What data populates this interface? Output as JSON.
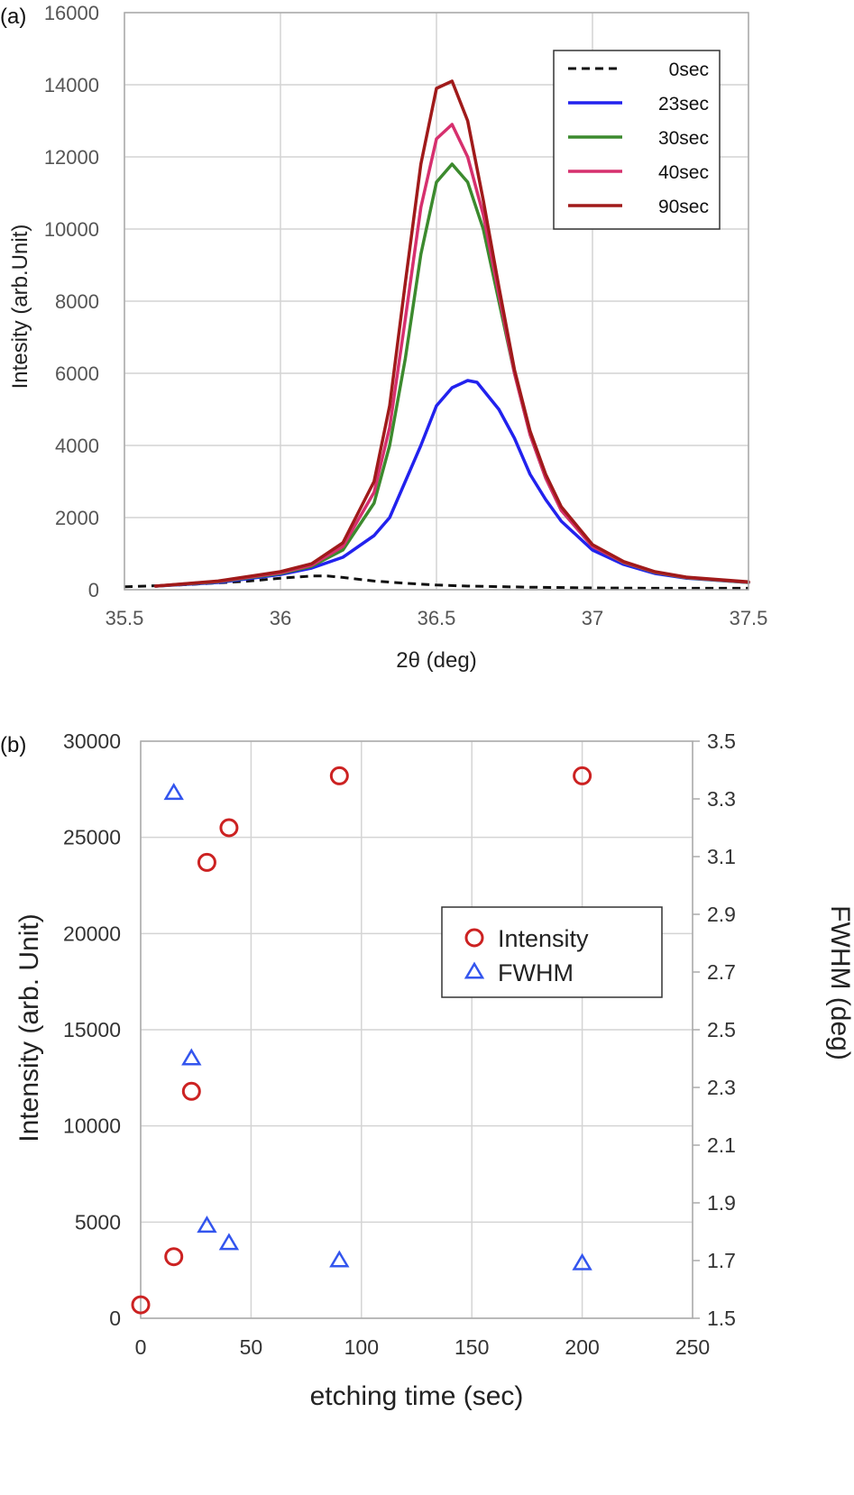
{
  "chart_data": [
    {
      "panel_label": "(a)",
      "type": "line",
      "xlabel": "2θ (deg)",
      "ylabel": "Intesity (arb.Unit)",
      "xlim": [
        35.5,
        37.5
      ],
      "ylim": [
        0,
        16000
      ],
      "x_ticks": [
        35.5,
        36,
        36.5,
        37,
        37.5
      ],
      "y_ticks": [
        0,
        2000,
        4000,
        6000,
        8000,
        10000,
        12000,
        14000,
        16000
      ],
      "grid": true,
      "legend_position": "top-right",
      "series": [
        {
          "name": "0sec",
          "color": "#111111",
          "dash": "dashed",
          "x": [
            35.5,
            35.7,
            35.9,
            36.0,
            36.1,
            36.15,
            36.2,
            36.3,
            36.4,
            36.5,
            36.6,
            36.8,
            37.0,
            37.2,
            37.5
          ],
          "y": [
            80,
            140,
            240,
            320,
            380,
            380,
            340,
            240,
            180,
            130,
            100,
            70,
            50,
            40,
            40
          ]
        },
        {
          "name": "23sec",
          "color": "#2222ee",
          "dash": "solid",
          "x": [
            35.6,
            35.8,
            36.0,
            36.1,
            36.2,
            36.3,
            36.35,
            36.4,
            36.45,
            36.5,
            36.55,
            36.6,
            36.63,
            36.7,
            36.75,
            36.8,
            36.85,
            36.9,
            37.0,
            37.1,
            37.2,
            37.3,
            37.5
          ],
          "y": [
            100,
            200,
            420,
            600,
            900,
            1500,
            2000,
            3000,
            4000,
            5100,
            5600,
            5800,
            5750,
            5000,
            4200,
            3200,
            2500,
            1900,
            1100,
            700,
            450,
            320,
            200
          ]
        },
        {
          "name": "30sec",
          "color": "#3c8a2e",
          "dash": "solid",
          "x": [
            35.6,
            35.8,
            36.0,
            36.1,
            36.2,
            36.3,
            36.35,
            36.4,
            36.45,
            36.5,
            36.55,
            36.6,
            36.65,
            36.7,
            36.75,
            36.8,
            36.85,
            36.9,
            37.0,
            37.1,
            37.2,
            37.3,
            37.5
          ],
          "y": [
            100,
            220,
            450,
            650,
            1100,
            2400,
            4000,
            6400,
            9300,
            11300,
            11800,
            11300,
            10000,
            8000,
            6000,
            4300,
            3100,
            2200,
            1200,
            750,
            480,
            330,
            200
          ]
        },
        {
          "name": "40sec",
          "color": "#d6306e",
          "dash": "solid",
          "x": [
            35.6,
            35.8,
            36.0,
            36.1,
            36.2,
            36.3,
            36.35,
            36.4,
            36.45,
            36.5,
            36.55,
            36.6,
            36.65,
            36.7,
            36.75,
            36.8,
            36.85,
            36.9,
            37.0,
            37.1,
            37.2,
            37.3,
            37.5
          ],
          "y": [
            100,
            230,
            470,
            680,
            1200,
            2700,
            4500,
            7500,
            10600,
            12500,
            12900,
            12000,
            10400,
            8200,
            6000,
            4300,
            3100,
            2200,
            1200,
            760,
            490,
            340,
            210
          ]
        },
        {
          "name": "90sec",
          "color": "#a01a1a",
          "dash": "solid",
          "x": [
            35.6,
            35.8,
            36.0,
            36.1,
            36.2,
            36.3,
            36.35,
            36.4,
            36.45,
            36.5,
            36.55,
            36.6,
            36.65,
            36.7,
            36.75,
            36.8,
            36.85,
            36.9,
            37.0,
            37.1,
            37.2,
            37.3,
            37.5
          ],
          "y": [
            100,
            240,
            500,
            720,
            1300,
            3000,
            5100,
            8500,
            11800,
            13900,
            14100,
            13000,
            10800,
            8400,
            6100,
            4400,
            3200,
            2300,
            1250,
            780,
            500,
            350,
            220
          ]
        }
      ]
    },
    {
      "panel_label": "(b)",
      "type": "scatter",
      "xlabel": "etching time (sec)",
      "ylabel": "Intensity (arb. Unit)",
      "y2label": "FWHM (deg)",
      "xlim": [
        0,
        250
      ],
      "ylim": [
        0,
        30000
      ],
      "y2lim": [
        1.5,
        3.5
      ],
      "x_ticks": [
        0,
        50,
        100,
        150,
        200,
        250
      ],
      "y_ticks": [
        0,
        5000,
        10000,
        15000,
        20000,
        25000,
        30000
      ],
      "y2_ticks": [
        "1.5",
        "1.7",
        "1.9",
        "2.1",
        "2.3",
        "2.5",
        "2.7",
        "2.9",
        "3.1",
        "3.3",
        "3.5"
      ],
      "grid": true,
      "legend_position": "center-right",
      "series": [
        {
          "name": "Intensity",
          "axis": "left",
          "marker": "circle",
          "color": "#cc2222",
          "x": [
            0,
            15,
            23,
            30,
            40,
            90,
            200
          ],
          "y": [
            700,
            3200,
            11800,
            23700,
            25500,
            28200,
            28200
          ]
        },
        {
          "name": "FWHM",
          "axis": "right",
          "marker": "triangle",
          "color": "#3355ee",
          "x": [
            15,
            23,
            30,
            40,
            90,
            200
          ],
          "y": [
            3.32,
            2.4,
            1.82,
            1.76,
            1.7,
            1.69
          ]
        }
      ]
    }
  ]
}
